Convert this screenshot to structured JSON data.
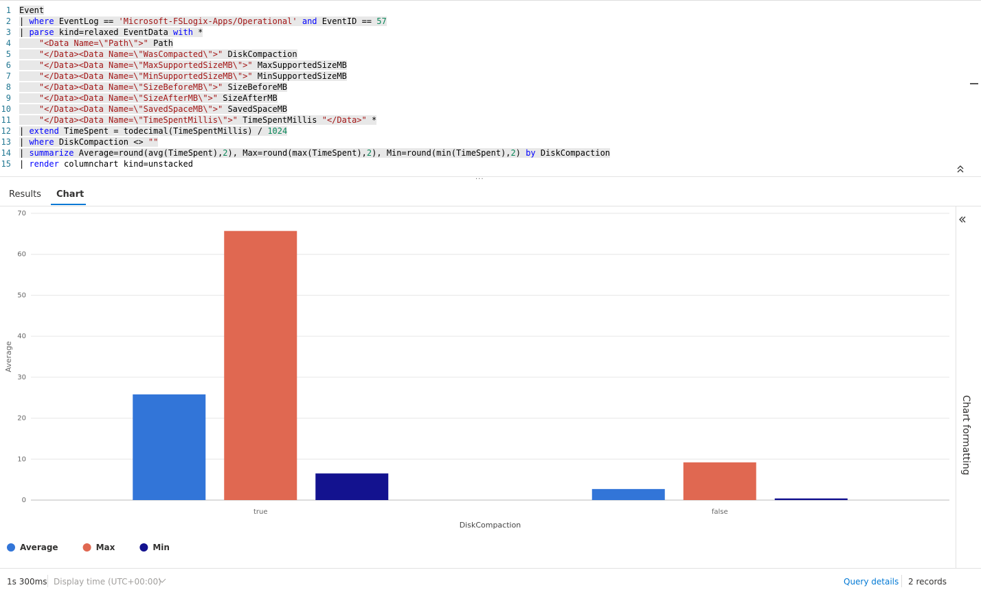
{
  "editor": {
    "line_numbers": [
      "1",
      "2",
      "3",
      "4",
      "5",
      "6",
      "7",
      "8",
      "9",
      "10",
      "11",
      "12",
      "13",
      "14",
      "15"
    ],
    "lines": [
      "Event",
      "| where EventLog == 'Microsoft-FSLogix-Apps/Operational' and EventID == 57",
      "| parse kind=relaxed EventData with *",
      "    \"<Data Name=\\\"Path\\\">\" Path",
      "    \"</Data><Data Name=\\\"WasCompacted\\\">\" DiskCompaction",
      "    \"</Data><Data Name=\\\"MaxSupportedSizeMB\\\">\" MaxSupportedSizeMB",
      "    \"</Data><Data Name=\\\"MinSupportedSizeMB\\\">\" MinSupportedSizeMB",
      "    \"</Data><Data Name=\\\"SizeBeforeMB\\\">\" SizeBeforeMB",
      "    \"</Data><Data Name=\\\"SizeAfterMB\\\">\" SizeAfterMB",
      "    \"</Data><Data Name=\\\"SavedSpaceMB\\\">\" SavedSpaceMB",
      "    \"</Data><Data Name=\\\"TimeSpentMillis\\\">\" TimeSpentMillis \"</Data>\" *",
      "| extend TimeSpent = todecimal(TimeSpentMillis) / 1024",
      "| where DiskCompaction <> \"\"",
      "| summarize Average=round(avg(TimeSpent),2), Max=round(max(TimeSpent),2), Min=round(min(TimeSpent),2) by DiskCompaction",
      "| render columnchart kind=unstacked"
    ]
  },
  "tabs": [
    "Results",
    "Chart"
  ],
  "chart_data": {
    "type": "bar",
    "categories": [
      "true",
      "false"
    ],
    "series": [
      {
        "name": "Average",
        "color": "#3275d8",
        "values": [
          25.8,
          2.7
        ]
      },
      {
        "name": "Max",
        "color": "#e06851",
        "values": [
          65.7,
          9.2
        ]
      },
      {
        "name": "Min",
        "color": "#13128f",
        "values": [
          6.5,
          0.4
        ]
      }
    ],
    "ylabel": "Average",
    "xlabel": "DiskCompaction",
    "ylim": [
      0,
      70
    ],
    "yticks": [
      0,
      10,
      20,
      30,
      40,
      50,
      60,
      70
    ],
    "grid": true,
    "legend": "bottom-left"
  },
  "side_panel": {
    "label": "Chart formatting"
  },
  "footer": {
    "duration": "1s 300ms",
    "display_time": "Display time (UTC+00:00)",
    "query_details": "Query details",
    "records": "2 records"
  }
}
